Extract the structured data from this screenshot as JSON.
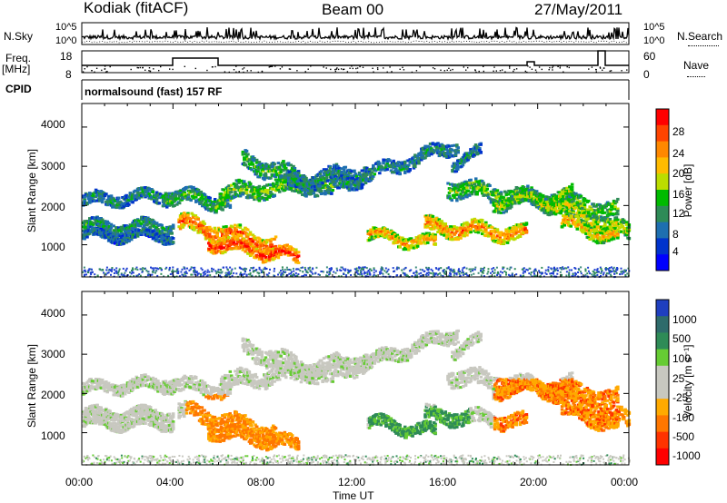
{
  "header": {
    "station": "Kodiak (fitACF)",
    "beam": "Beam 00",
    "date": "27/May/2011"
  },
  "top_panels": {
    "nsky_label": "N.Sky",
    "nsearch_label": "N.Search",
    "count_ticks": [
      "10^5",
      "10^0"
    ],
    "freq_label": "Freq.",
    "freq_unit": "[MHz]",
    "freq_ticks": [
      "18",
      "8"
    ],
    "nave_label": "Nave",
    "nave_ticks": [
      "60",
      "0"
    ],
    "cpid_label": "CPID",
    "cpid_text": "normalsound (fast) 157 RF"
  },
  "chart_data": [
    {
      "type": "heatmap",
      "name": "power-panel",
      "ylabel": "Slant Range [km]",
      "yticks": [
        1000,
        2000,
        3000,
        4000
      ],
      "ylim": [
        180,
        4600
      ],
      "xlim_hours": [
        0,
        24
      ],
      "colorbar_label": "Power [dB]",
      "colorbar_ticks": [
        "28",
        "24",
        "20",
        "16",
        "12",
        "8",
        "4"
      ],
      "colorbar_colors": [
        "#ff0000",
        "#ff4400",
        "#ff8800",
        "#ffbb00",
        "#bbdd00",
        "#00bb00",
        "#2e8b57",
        "#1e6fb0",
        "#0033cc",
        "#0000ff"
      ]
    },
    {
      "type": "heatmap",
      "name": "velocity-panel",
      "ylabel": "Slant Range [km]",
      "yticks": [
        1000,
        2000,
        3000,
        4000
      ],
      "ylim": [
        180,
        4600
      ],
      "xlim_hours": [
        0,
        24
      ],
      "colorbar_label": "Velocity [m s⁻¹]",
      "colorbar_ticks": [
        "1000",
        "500",
        "100",
        "25",
        "-25",
        "-100",
        "-500",
        "-1000"
      ],
      "colorbar_colors": [
        "#1f3fbf",
        "#2e6b6b",
        "#2e8b57",
        "#66cc33",
        "#c8c8c0",
        "#c8c8c0",
        "#ffaa00",
        "#ff7700",
        "#ff3300",
        "#ff0000"
      ]
    }
  ],
  "xaxis": {
    "ticks": [
      "00:00",
      "04:00",
      "08:00",
      "12:00",
      "16:00",
      "20:00",
      "00:00"
    ],
    "label": "Time UT"
  }
}
